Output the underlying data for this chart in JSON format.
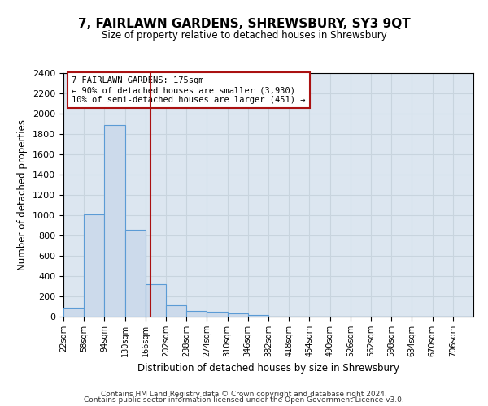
{
  "title": "7, FAIRLAWN GARDENS, SHREWSBURY, SY3 9QT",
  "subtitle": "Size of property relative to detached houses in Shrewsbury",
  "xlabel": "Distribution of detached houses by size in Shrewsbury",
  "ylabel": "Number of detached properties",
  "bin_edges": [
    22,
    58,
    94,
    130,
    166,
    202,
    238,
    274,
    310,
    346,
    382,
    418,
    454,
    490,
    526,
    562,
    598,
    634,
    670,
    706,
    742
  ],
  "bar_heights": [
    90,
    1010,
    1890,
    855,
    320,
    115,
    55,
    45,
    30,
    20,
    0,
    0,
    0,
    0,
    0,
    0,
    0,
    0,
    0,
    0
  ],
  "bar_color": "#ccdaeb",
  "bar_edgecolor": "#5b9bd5",
  "grid_color": "#c8d4de",
  "background_color": "#dce6f0",
  "vline_x": 175,
  "vline_color": "#aa1111",
  "ylim": [
    0,
    2400
  ],
  "yticks": [
    0,
    200,
    400,
    600,
    800,
    1000,
    1200,
    1400,
    1600,
    1800,
    2000,
    2200,
    2400
  ],
  "annotation_text": "7 FAIRLAWN GARDENS: 175sqm\n← 90% of detached houses are smaller (3,930)\n10% of semi-detached houses are larger (451) →",
  "annotation_boxcolor": "white",
  "annotation_edgecolor": "#aa1111",
  "footer1": "Contains HM Land Registry data © Crown copyright and database right 2024.",
  "footer2": "Contains public sector information licensed under the Open Government Licence v3.0."
}
